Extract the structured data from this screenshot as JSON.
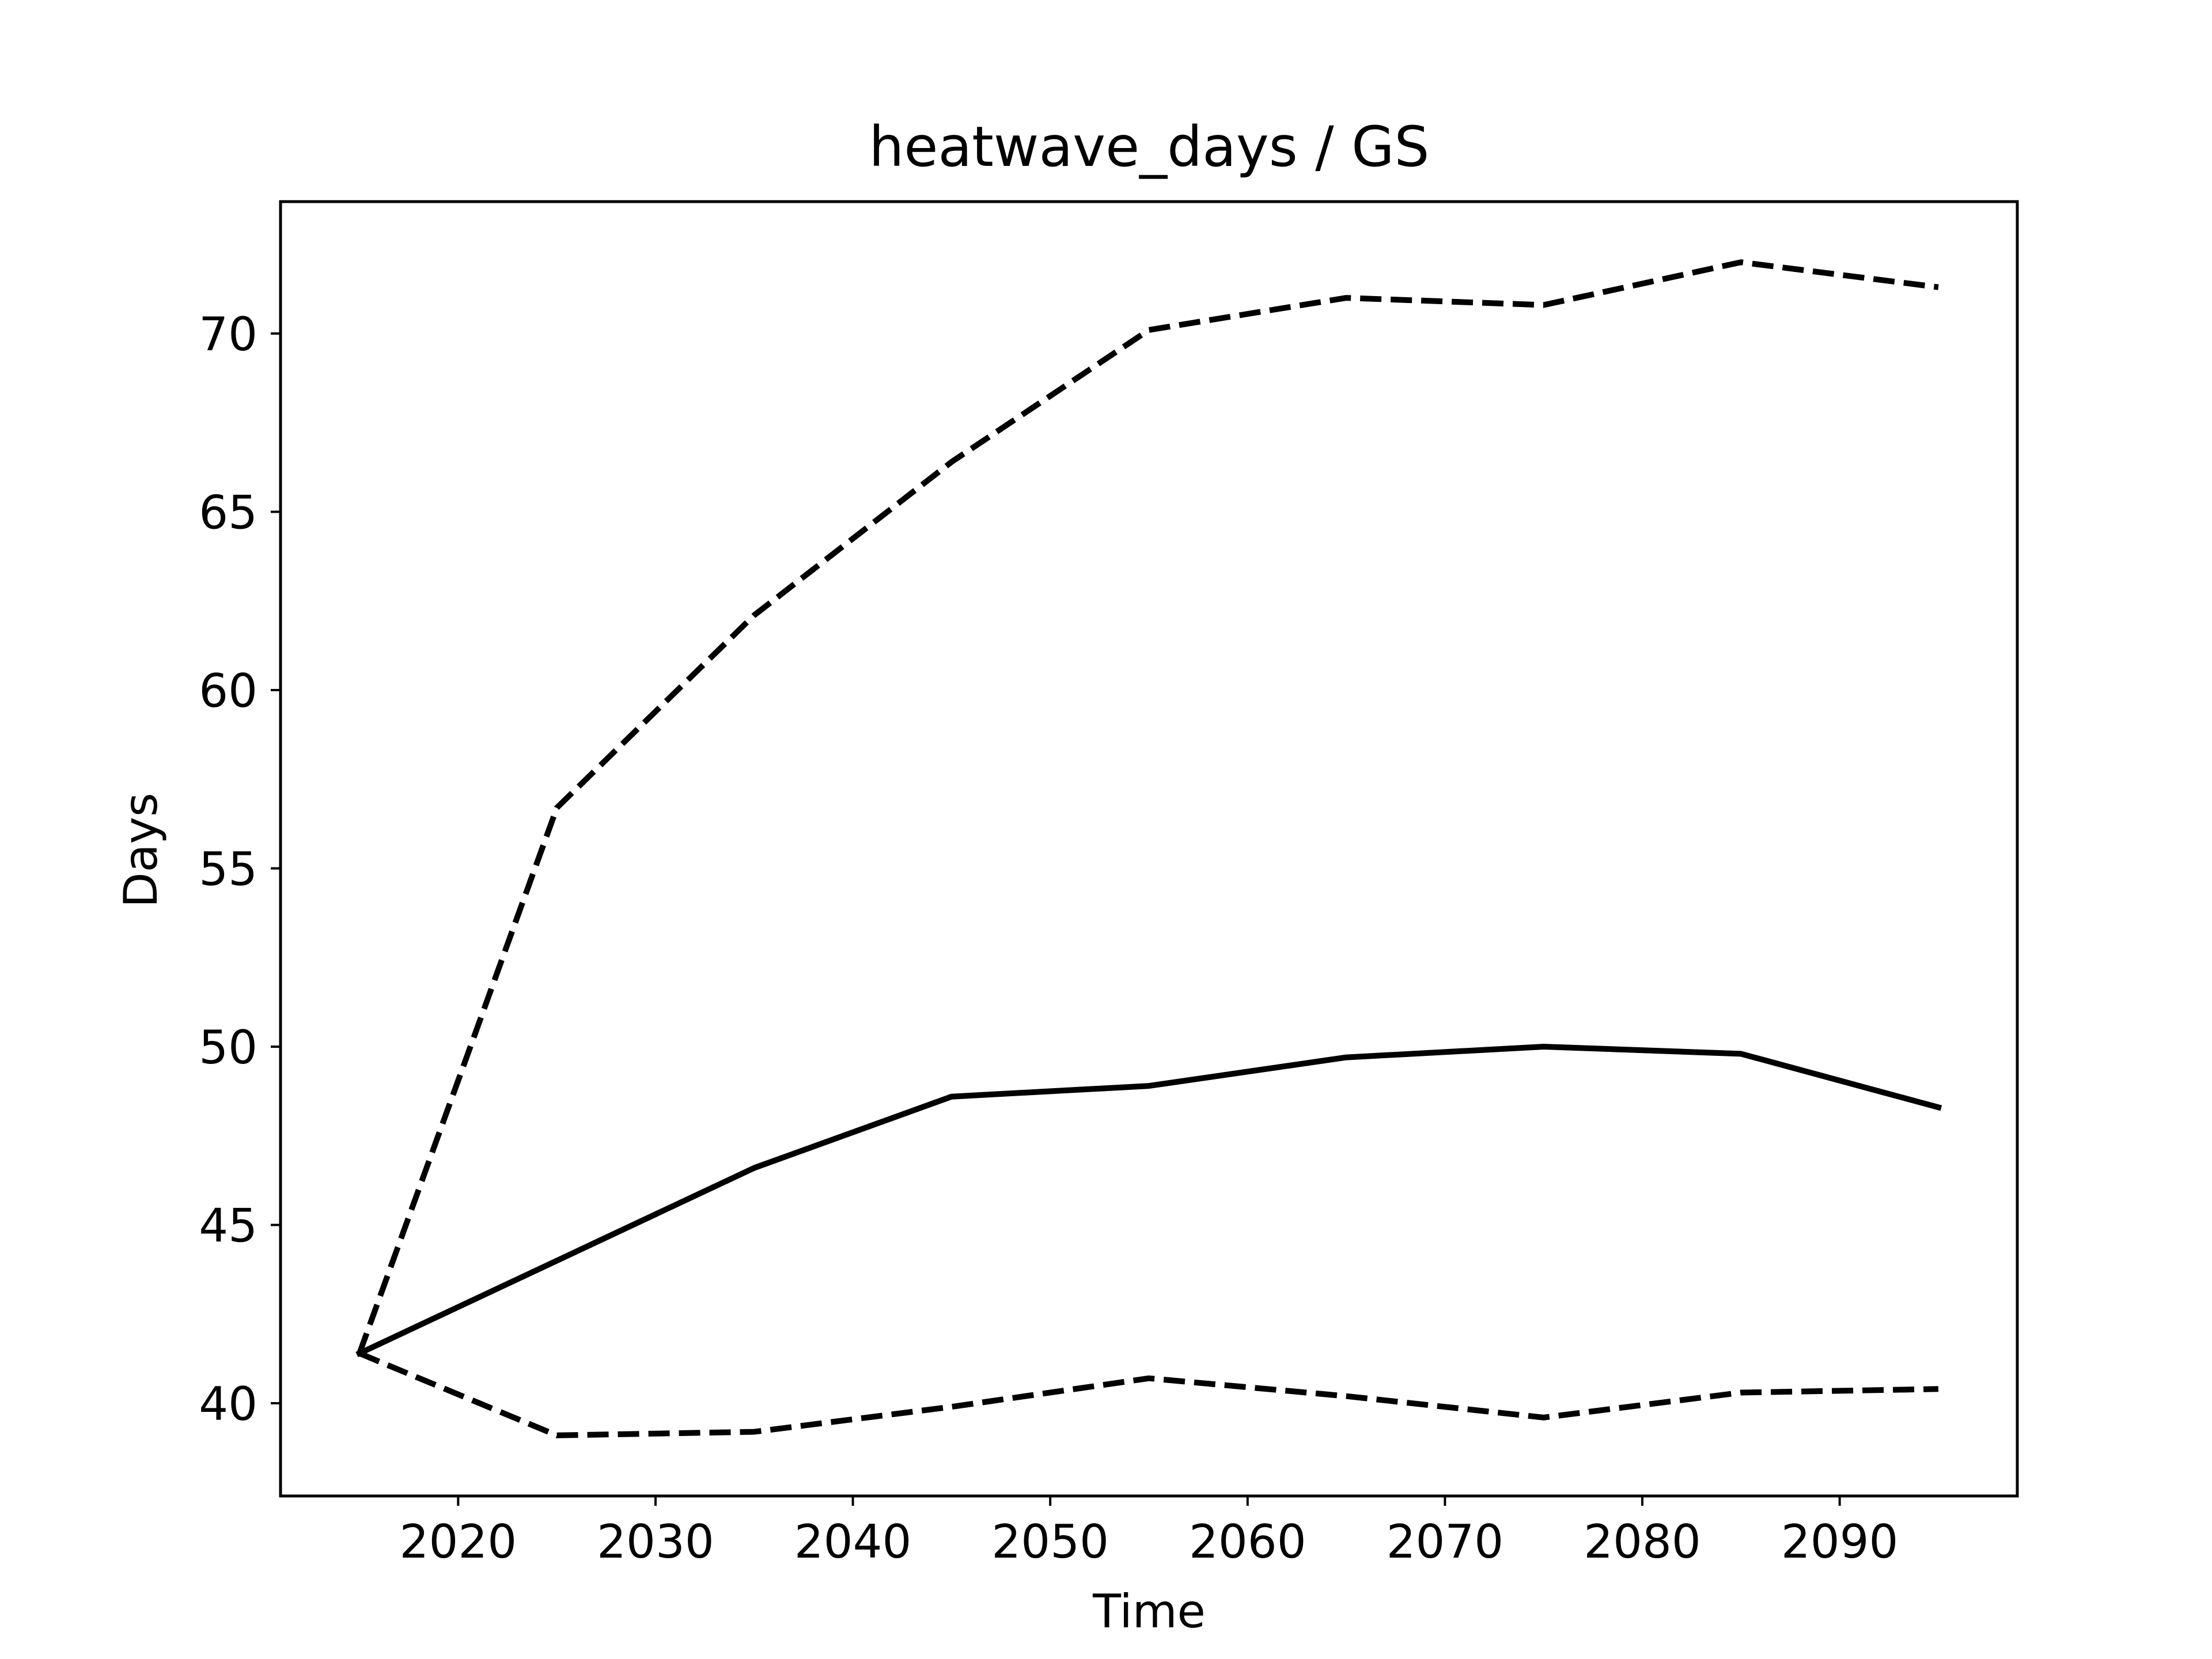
{
  "chart_data": {
    "type": "line",
    "title": "heatwave_days / GS",
    "xlabel": "Time",
    "ylabel": "Days",
    "xlim": [
      2011,
      2099
    ],
    "ylim": [
      37.4,
      73.7
    ],
    "xticks": [
      2020,
      2030,
      2040,
      2050,
      2060,
      2070,
      2080,
      2090
    ],
    "yticks": [
      40,
      45,
      50,
      55,
      60,
      65,
      70
    ],
    "grid": false,
    "x": [
      2015,
      2025,
      2035,
      2045,
      2055,
      2065,
      2075,
      2085,
      2095
    ],
    "series": [
      {
        "values": [
          41.4,
          44.0,
          46.6,
          48.6,
          48.9,
          49.7,
          50.0,
          49.8,
          48.3
        ],
        "color": "#000000",
        "dash": "solid"
      },
      {
        "values": [
          41.4,
          56.7,
          62.1,
          66.4,
          70.1,
          71.0,
          70.8,
          72.0,
          71.3
        ],
        "color": "#000000",
        "dash": "dashed"
      },
      {
        "values": [
          41.4,
          39.1,
          39.2,
          39.9,
          40.7,
          40.2,
          39.6,
          40.3,
          40.4
        ],
        "color": "#000000",
        "dash": "dashed"
      }
    ]
  }
}
